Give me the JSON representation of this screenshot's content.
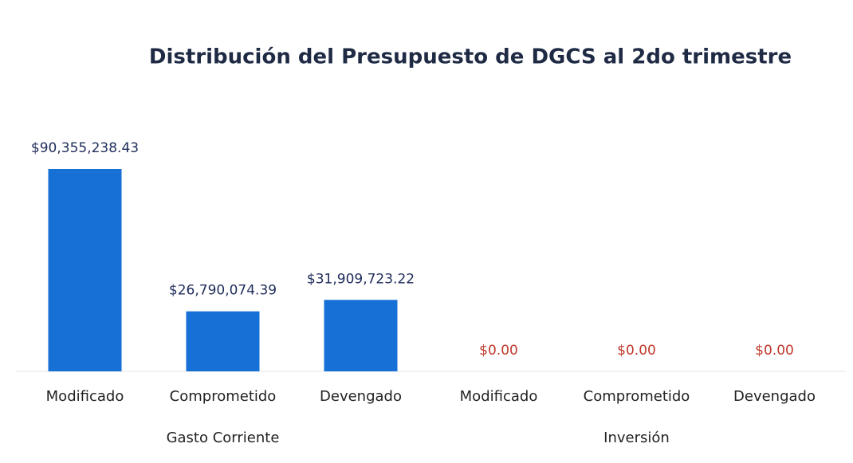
{
  "chart_data": {
    "type": "bar",
    "title": "Distribución del Presupuesto de DGCS al 2do trimestre",
    "categories": [
      "Modificado",
      "Comprometido",
      "Devengado",
      "Modificado",
      "Comprometido",
      "Devengado"
    ],
    "groups": [
      "Gasto Corriente",
      "Inversión"
    ],
    "values": [
      90355238.43,
      26790074.39,
      31909723.22,
      0,
      0,
      0
    ],
    "value_labels": [
      "$90,355,238.43",
      "$26,790,074.39",
      "$31,909,723.22",
      "$0.00",
      "$0.00",
      "$0.00"
    ],
    "value_label_colors": [
      "#1f2d5a",
      "#1f2d5a",
      "#1f2d5a",
      "#c0392b",
      "#c0392b",
      "#c0392b"
    ],
    "color": "#1670d6"
  }
}
